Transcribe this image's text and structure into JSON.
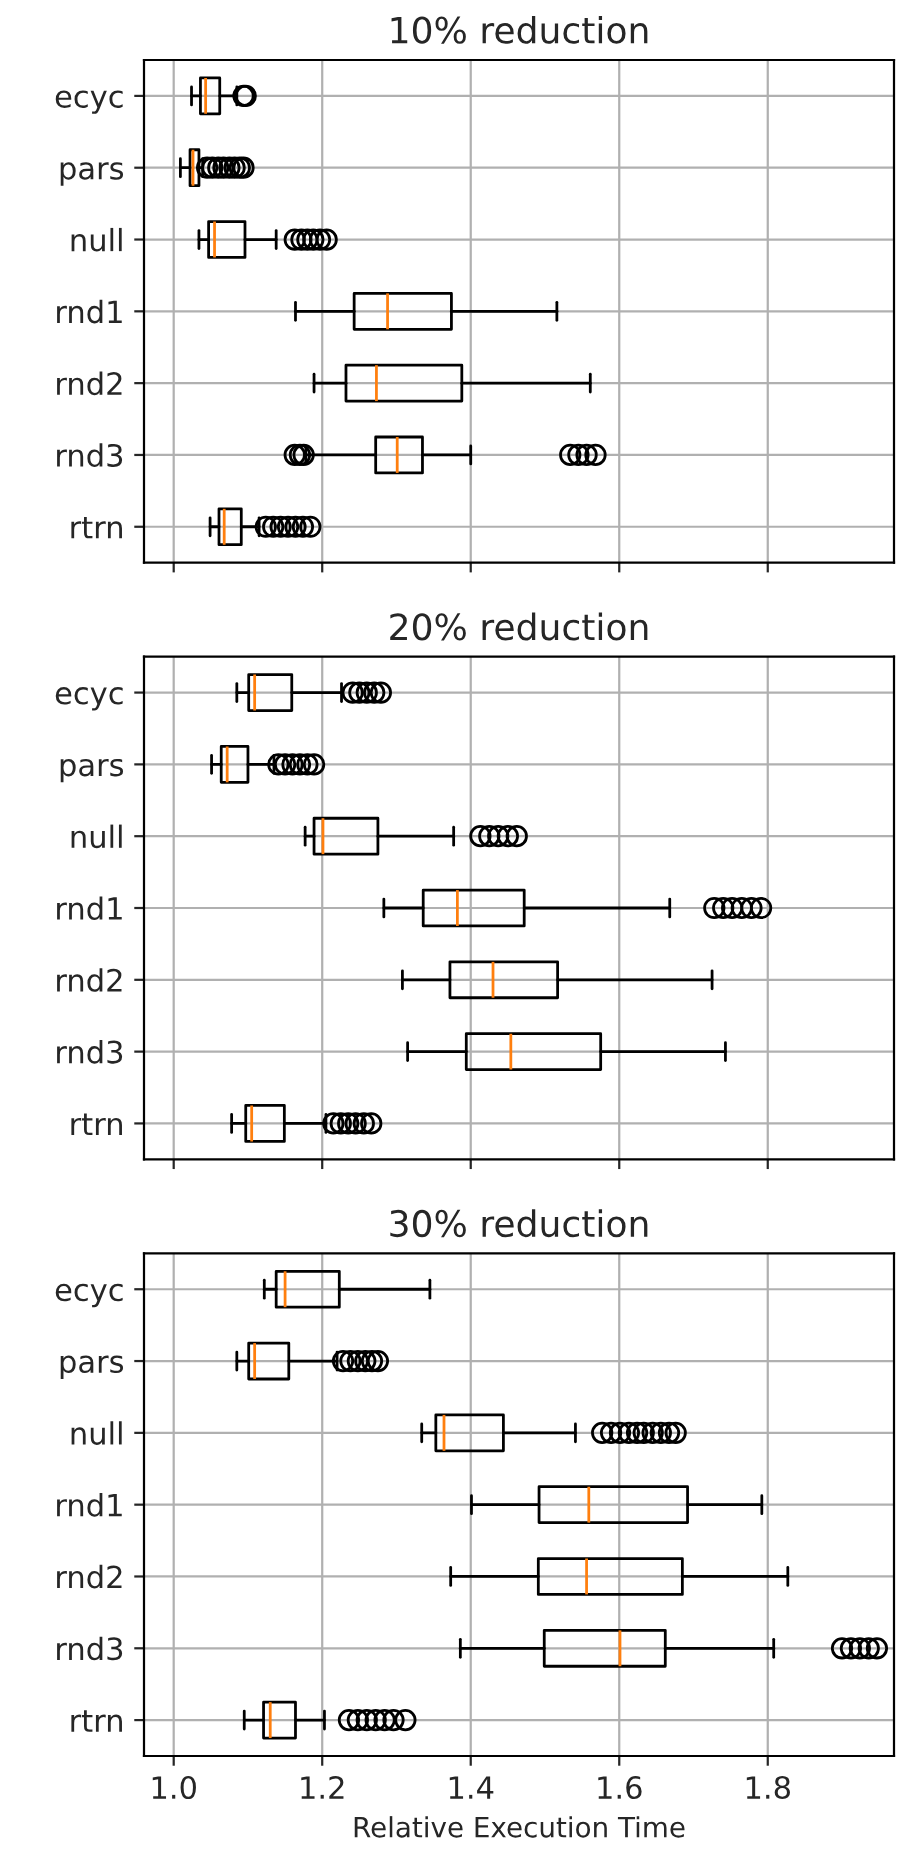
{
  "chart_data": [
    {
      "type": "box",
      "title": "10% reduction",
      "orientation": "horizontal",
      "grid": true,
      "tick_labels": "y",
      "categories": [
        "ecyc",
        "pars",
        "null",
        "rnd1",
        "rnd2",
        "rnd3",
        "rtrn"
      ],
      "xlim": [
        0.96,
        1.97
      ],
      "xticks": [
        {
          "value": 1.0,
          "label": null
        },
        {
          "value": 1.2,
          "label": null
        },
        {
          "value": 1.4,
          "label": null
        },
        {
          "value": 1.6,
          "label": null
        },
        {
          "value": 1.8,
          "label": null
        }
      ],
      "boxes": [
        {
          "low": 1.024,
          "q1": 1.036,
          "median": 1.043,
          "q3": 1.062,
          "high": 1.085,
          "outliers": [
            1.094,
            1.097
          ]
        },
        {
          "low": 1.009,
          "q1": 1.022,
          "median": 1.026,
          "q3": 1.034,
          "high": 1.039,
          "outliers": [
            1.045,
            1.052,
            1.06,
            1.067,
            1.075,
            1.082,
            1.089,
            1.094
          ]
        },
        {
          "low": 1.034,
          "q1": 1.047,
          "median": 1.055,
          "q3": 1.096,
          "high": 1.138,
          "outliers": [
            1.163,
            1.172,
            1.18,
            1.188,
            1.197,
            1.206
          ]
        },
        {
          "low": 1.164,
          "q1": 1.243,
          "median": 1.288,
          "q3": 1.374,
          "high": 1.516
        },
        {
          "low": 1.189,
          "q1": 1.232,
          "median": 1.273,
          "q3": 1.388,
          "high": 1.561
        },
        {
          "low": 1.178,
          "q1": 1.272,
          "median": 1.301,
          "q3": 1.335,
          "high": 1.4,
          "outliers": [
            1.163,
            1.17,
            1.175,
            1.534,
            1.545,
            1.556,
            1.568
          ]
        },
        {
          "low": 1.049,
          "q1": 1.061,
          "median": 1.068,
          "q3": 1.091,
          "high": 1.115,
          "outliers": [
            1.124,
            1.134,
            1.144,
            1.154,
            1.164,
            1.174,
            1.184
          ]
        }
      ]
    },
    {
      "type": "box",
      "title": "20% reduction",
      "orientation": "horizontal",
      "grid": true,
      "tick_labels": "y",
      "categories": [
        "ecyc",
        "pars",
        "null",
        "rnd1",
        "rnd2",
        "rnd3",
        "rtrn"
      ],
      "xlim": [
        0.96,
        1.97
      ],
      "xticks": [
        {
          "value": 1.0,
          "label": null
        },
        {
          "value": 1.2,
          "label": null
        },
        {
          "value": 1.4,
          "label": null
        },
        {
          "value": 1.6,
          "label": null
        },
        {
          "value": 1.8,
          "label": null
        }
      ],
      "boxes": [
        {
          "low": 1.085,
          "q1": 1.101,
          "median": 1.109,
          "q3": 1.159,
          "high": 1.226,
          "outliers": [
            1.241,
            1.25,
            1.26,
            1.27,
            1.279
          ]
        },
        {
          "low": 1.051,
          "q1": 1.064,
          "median": 1.072,
          "q3": 1.1,
          "high": 1.135,
          "outliers": [
            1.141,
            1.15,
            1.16,
            1.17,
            1.18,
            1.189
          ]
        },
        {
          "low": 1.177,
          "q1": 1.189,
          "median": 1.201,
          "q3": 1.275,
          "high": 1.377,
          "outliers": [
            1.413,
            1.425,
            1.437,
            1.45,
            1.462
          ]
        },
        {
          "low": 1.283,
          "q1": 1.336,
          "median": 1.382,
          "q3": 1.472,
          "high": 1.668,
          "outliers": [
            1.728,
            1.74,
            1.752,
            1.765,
            1.778,
            1.791
          ]
        },
        {
          "low": 1.308,
          "q1": 1.372,
          "median": 1.43,
          "q3": 1.517,
          "high": 1.725
        },
        {
          "low": 1.315,
          "q1": 1.394,
          "median": 1.454,
          "q3": 1.575,
          "high": 1.743
        },
        {
          "low": 1.078,
          "q1": 1.097,
          "median": 1.105,
          "q3": 1.149,
          "high": 1.205,
          "outliers": [
            1.215,
            1.225,
            1.235,
            1.245,
            1.256,
            1.266
          ]
        }
      ]
    },
    {
      "type": "box",
      "title": "30% reduction",
      "xlabel": "Relative Execution Time",
      "orientation": "horizontal",
      "grid": true,
      "categories": [
        "ecyc",
        "pars",
        "null",
        "rnd1",
        "rnd2",
        "rnd3",
        "rtrn"
      ],
      "xlim": [
        0.96,
        1.97
      ],
      "xticks": [
        {
          "value": 1.0,
          "label": "1.0"
        },
        {
          "value": 1.2,
          "label": "1.2"
        },
        {
          "value": 1.4,
          "label": "1.4"
        },
        {
          "value": 1.6,
          "label": "1.6"
        },
        {
          "value": 1.8,
          "label": "1.8"
        }
      ],
      "boxes": [
        {
          "low": 1.122,
          "q1": 1.138,
          "median": 1.15,
          "q3": 1.223,
          "high": 1.345
        },
        {
          "low": 1.085,
          "q1": 1.101,
          "median": 1.109,
          "q3": 1.155,
          "high": 1.22,
          "outliers": [
            1.228,
            1.238,
            1.248,
            1.258,
            1.267,
            1.275
          ]
        },
        {
          "low": 1.334,
          "q1": 1.353,
          "median": 1.364,
          "q3": 1.444,
          "high": 1.541,
          "outliers": [
            1.577,
            1.589,
            1.601,
            1.613,
            1.624,
            1.633,
            1.645,
            1.656,
            1.667,
            1.676
          ]
        },
        {
          "low": 1.401,
          "q1": 1.492,
          "median": 1.559,
          "q3": 1.692,
          "high": 1.792
        },
        {
          "low": 1.373,
          "q1": 1.491,
          "median": 1.556,
          "q3": 1.685,
          "high": 1.827
        },
        {
          "low": 1.386,
          "q1": 1.499,
          "median": 1.601,
          "q3": 1.662,
          "high": 1.808,
          "outliers": [
            1.9,
            1.912,
            1.924,
            1.936,
            1.947
          ]
        },
        {
          "low": 1.095,
          "q1": 1.121,
          "median": 1.13,
          "q3": 1.164,
          "high": 1.203,
          "outliers": [
            1.236,
            1.248,
            1.26,
            1.272,
            1.284,
            1.296,
            1.312
          ]
        }
      ]
    }
  ]
}
